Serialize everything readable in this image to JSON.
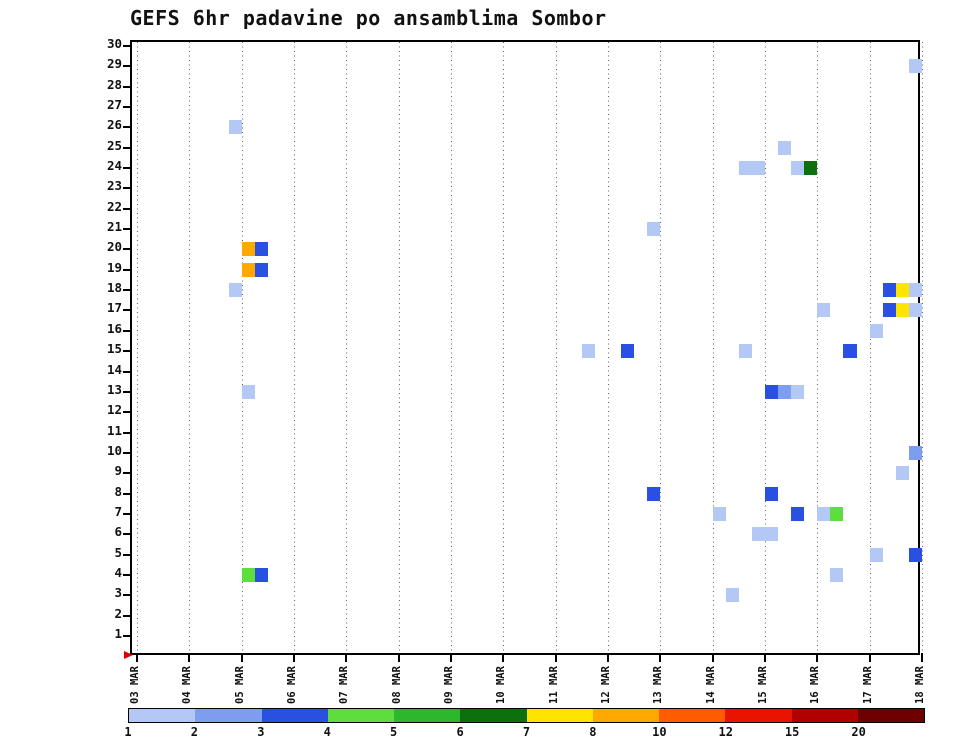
{
  "title": "GEFS 6hr padavine po ansamblima Sombor",
  "chart_data": {
    "type": "heatmap",
    "note": "GEFS ensemble 6-hourly precipitation strip chart; each row is one ensemble member (1-30), each column is one 6-hour period (t index counted from 03 MAR 00Z to 18 MAR, 4 periods per day); colored cells show precipitation amount bin per legend.",
    "x_axis": {
      "tick_labels": [
        "03 MAR",
        "04 MAR",
        "05 MAR",
        "06 MAR",
        "07 MAR",
        "08 MAR",
        "09 MAR",
        "10 MAR",
        "11 MAR",
        "12 MAR",
        "13 MAR",
        "14 MAR",
        "15 MAR",
        "16 MAR",
        "17 MAR",
        "18 MAR"
      ],
      "periods_per_day": 4,
      "total_periods": 60
    },
    "y_axis": {
      "min": 1,
      "max": 30,
      "step": 1
    },
    "legend": {
      "position": "bottom",
      "boundary_labels": [
        "1",
        "2",
        "3",
        "4",
        "5",
        "6",
        "7",
        "8",
        "10",
        "12",
        "15",
        "20"
      ],
      "bins": [
        {
          "label": "1",
          "bin": "1-2",
          "color": "#b4c8f6"
        },
        {
          "label": "2",
          "bin": "2-3",
          "color": "#7d9ef0"
        },
        {
          "label": "3",
          "bin": "3-4",
          "color": "#2a50e2"
        },
        {
          "label": "4",
          "bin": "4-5",
          "color": "#5ede3c"
        },
        {
          "label": "5",
          "bin": "5-6",
          "color": "#2cb82c"
        },
        {
          "label": "6",
          "bin": "6-7",
          "color": "#0c700c"
        },
        {
          "label": "7",
          "bin": "7-8",
          "color": "#ffe400"
        },
        {
          "label": "8",
          "bin": "8-10",
          "color": "#ffa800"
        },
        {
          "label": "10",
          "bin": "10-12",
          "color": "#ff5c00"
        },
        {
          "label": "12",
          "bin": "12-15",
          "color": "#e81400"
        },
        {
          "label": "15",
          "bin": "15-20",
          "color": "#b00000"
        },
        {
          "label": "20",
          "bin": "20+",
          "color": "#6e0000"
        }
      ]
    },
    "cells": [
      {
        "m": 29,
        "t": 59,
        "bin": "1-2"
      },
      {
        "m": 26,
        "t": 7,
        "bin": "1-2"
      },
      {
        "m": 25,
        "t": 49,
        "bin": "1-2"
      },
      {
        "m": 24,
        "t": 46,
        "bin": "1-2"
      },
      {
        "m": 24,
        "t": 47,
        "bin": "1-2"
      },
      {
        "m": 24,
        "t": 50,
        "bin": "1-2"
      },
      {
        "m": 24,
        "t": 51,
        "bin": "6-7"
      },
      {
        "m": 21,
        "t": 39,
        "bin": "1-2"
      },
      {
        "m": 20,
        "t": 8,
        "bin": "8-10"
      },
      {
        "m": 20,
        "t": 9,
        "bin": "3-4"
      },
      {
        "m": 19,
        "t": 8,
        "bin": "8-10"
      },
      {
        "m": 19,
        "t": 9,
        "bin": "3-4"
      },
      {
        "m": 18,
        "t": 7,
        "bin": "1-2"
      },
      {
        "m": 18,
        "t": 57,
        "bin": "3-4"
      },
      {
        "m": 18,
        "t": 58,
        "bin": "7-8"
      },
      {
        "m": 18,
        "t": 59,
        "bin": "1-2"
      },
      {
        "m": 17,
        "t": 57,
        "bin": "3-4"
      },
      {
        "m": 17,
        "t": 58,
        "bin": "7-8"
      },
      {
        "m": 17,
        "t": 59,
        "bin": "1-2"
      },
      {
        "m": 17,
        "t": 52,
        "bin": "1-2"
      },
      {
        "m": 16,
        "t": 56,
        "bin": "1-2"
      },
      {
        "m": 15,
        "t": 34,
        "bin": "1-2"
      },
      {
        "m": 15,
        "t": 37,
        "bin": "3-4"
      },
      {
        "m": 15,
        "t": 46,
        "bin": "1-2"
      },
      {
        "m": 15,
        "t": 54,
        "bin": "3-4"
      },
      {
        "m": 13,
        "t": 8,
        "bin": "1-2"
      },
      {
        "m": 13,
        "t": 48,
        "bin": "3-4"
      },
      {
        "m": 13,
        "t": 49,
        "bin": "2-3"
      },
      {
        "m": 13,
        "t": 50,
        "bin": "1-2"
      },
      {
        "m": 10,
        "t": 59,
        "bin": "2-3"
      },
      {
        "m": 9,
        "t": 58,
        "bin": "1-2"
      },
      {
        "m": 8,
        "t": 39,
        "bin": "3-4"
      },
      {
        "m": 8,
        "t": 48,
        "bin": "3-4"
      },
      {
        "m": 7,
        "t": 44,
        "bin": "1-2"
      },
      {
        "m": 7,
        "t": 50,
        "bin": "3-4"
      },
      {
        "m": 7,
        "t": 52,
        "bin": "1-2"
      },
      {
        "m": 7,
        "t": 53,
        "bin": "4-5"
      },
      {
        "m": 6,
        "t": 47,
        "bin": "1-2"
      },
      {
        "m": 6,
        "t": 48,
        "bin": "1-2"
      },
      {
        "m": 5,
        "t": 56,
        "bin": "1-2"
      },
      {
        "m": 5,
        "t": 59,
        "bin": "3-4"
      },
      {
        "m": 4,
        "t": 8,
        "bin": "4-5"
      },
      {
        "m": 4,
        "t": 9,
        "bin": "3-4"
      },
      {
        "m": 4,
        "t": 53,
        "bin": "1-2"
      },
      {
        "m": 3,
        "t": 45,
        "bin": "1-2"
      }
    ]
  }
}
